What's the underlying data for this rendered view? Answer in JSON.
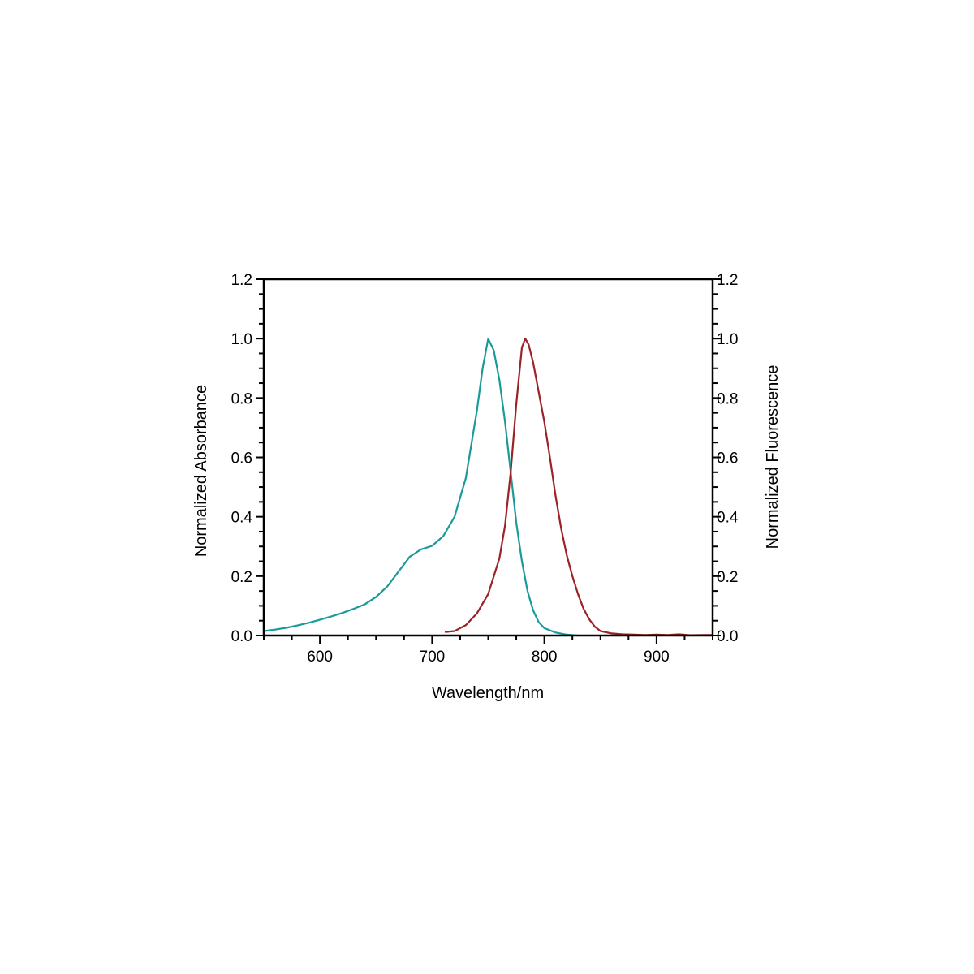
{
  "chart_data": {
    "type": "line",
    "xlabel": "Wavelength/nm",
    "ylabel_left": "Normalized Absorbance",
    "ylabel_right": "Normalized Fluorescence",
    "xlim": [
      550,
      950
    ],
    "ylim": [
      0.0,
      1.2
    ],
    "x_ticks": [
      600,
      700,
      800,
      900
    ],
    "x_tick_labels": [
      "600",
      "700",
      "800",
      "900"
    ],
    "y_ticks": [
      0.0,
      0.2,
      0.4,
      0.6,
      0.8,
      1.0,
      1.2
    ],
    "y_tick_labels": [
      "0.0",
      "0.2",
      "0.4",
      "0.6",
      "0.8",
      "1.0",
      "1.2"
    ],
    "grid": false,
    "series": [
      {
        "color": "#1a9a9a",
        "axis": "left",
        "points": [
          [
            550,
            0.015
          ],
          [
            560,
            0.02
          ],
          [
            570,
            0.026
          ],
          [
            580,
            0.034
          ],
          [
            590,
            0.043
          ],
          [
            600,
            0.053
          ],
          [
            610,
            0.064
          ],
          [
            620,
            0.076
          ],
          [
            630,
            0.09
          ],
          [
            640,
            0.105
          ],
          [
            650,
            0.13
          ],
          [
            660,
            0.165
          ],
          [
            670,
            0.215
          ],
          [
            680,
            0.265
          ],
          [
            690,
            0.29
          ],
          [
            700,
            0.302
          ],
          [
            710,
            0.335
          ],
          [
            720,
            0.4
          ],
          [
            730,
            0.53
          ],
          [
            740,
            0.76
          ],
          [
            745,
            0.9
          ],
          [
            750,
            1.0
          ],
          [
            755,
            0.96
          ],
          [
            760,
            0.86
          ],
          [
            765,
            0.72
          ],
          [
            770,
            0.55
          ],
          [
            775,
            0.38
          ],
          [
            780,
            0.25
          ],
          [
            785,
            0.15
          ],
          [
            790,
            0.085
          ],
          [
            795,
            0.045
          ],
          [
            800,
            0.025
          ],
          [
            810,
            0.01
          ],
          [
            820,
            0.003
          ],
          [
            830,
            0.0
          ]
        ]
      },
      {
        "color": "#9b2226",
        "axis": "right",
        "points": [
          [
            712,
            0.012
          ],
          [
            720,
            0.015
          ],
          [
            730,
            0.035
          ],
          [
            740,
            0.075
          ],
          [
            750,
            0.14
          ],
          [
            760,
            0.26
          ],
          [
            765,
            0.37
          ],
          [
            770,
            0.55
          ],
          [
            775,
            0.78
          ],
          [
            780,
            0.97
          ],
          [
            783,
            1.0
          ],
          [
            786,
            0.98
          ],
          [
            790,
            0.92
          ],
          [
            795,
            0.82
          ],
          [
            800,
            0.72
          ],
          [
            805,
            0.6
          ],
          [
            810,
            0.47
          ],
          [
            815,
            0.36
          ],
          [
            820,
            0.27
          ],
          [
            825,
            0.2
          ],
          [
            830,
            0.14
          ],
          [
            835,
            0.09
          ],
          [
            840,
            0.055
          ],
          [
            845,
            0.03
          ],
          [
            850,
            0.015
          ],
          [
            860,
            0.007
          ],
          [
            870,
            0.004
          ],
          [
            880,
            0.003
          ],
          [
            890,
            0.002
          ],
          [
            900,
            0.003
          ],
          [
            910,
            0.002
          ],
          [
            920,
            0.004
          ],
          [
            930,
            0.001
          ],
          [
            940,
            0.002
          ],
          [
            950,
            0.002
          ]
        ]
      }
    ]
  }
}
